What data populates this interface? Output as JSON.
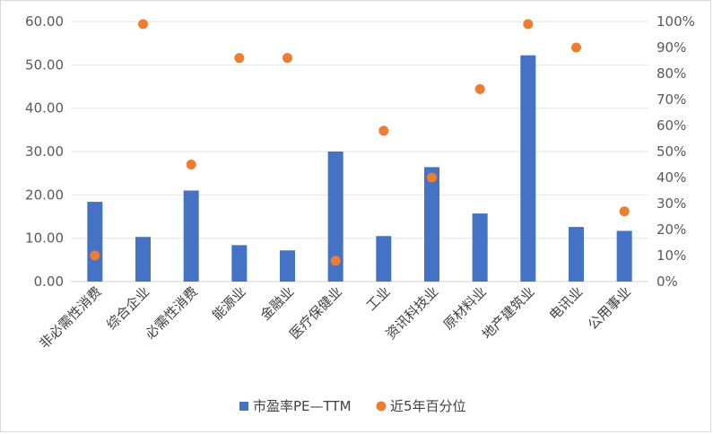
{
  "chart_data": {
    "type": "bar",
    "categories": [
      "非必需性消费",
      "综合企业",
      "必需性消费",
      "能源业",
      "金融业",
      "医疗保健业",
      "工业",
      "资讯科技业",
      "原材料业",
      "地产建筑业",
      "电讯业",
      "公用事业"
    ],
    "series": [
      {
        "name": "市盈率PE—TTM",
        "type": "bar",
        "axis": "left",
        "color": "#4472C4",
        "values": [
          18.4,
          10.3,
          21.0,
          8.4,
          7.2,
          30.0,
          10.5,
          26.4,
          15.7,
          52.2,
          12.6,
          11.7
        ]
      },
      {
        "name": "近5年百分位",
        "type": "scatter",
        "axis": "right",
        "color": "#ED7D31",
        "values": [
          0.1,
          0.99,
          0.45,
          0.86,
          0.86,
          0.08,
          0.58,
          0.4,
          0.74,
          0.99,
          0.9,
          0.27
        ]
      }
    ],
    "y_left": {
      "ylim": [
        0,
        60
      ],
      "ticks": [
        "0.00",
        "10.00",
        "20.00",
        "30.00",
        "40.00",
        "50.00",
        "60.00"
      ]
    },
    "y_right": {
      "ylim": [
        0,
        1
      ],
      "ticks": [
        "0%",
        "10%",
        "20%",
        "30%",
        "40%",
        "50%",
        "60%",
        "70%",
        "80%",
        "90%",
        "100%"
      ]
    },
    "grid": true,
    "legend_position": "bottom"
  }
}
